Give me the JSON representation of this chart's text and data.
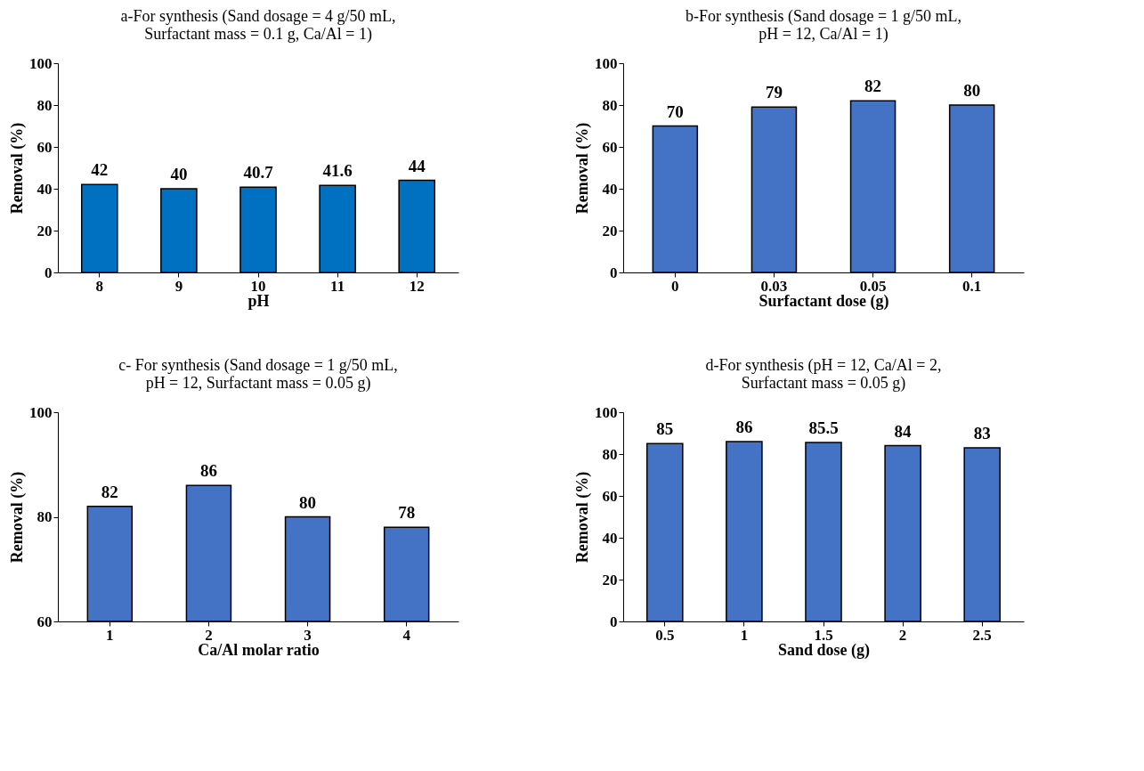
{
  "chart_data": [
    {
      "type": "bar",
      "title": "a-For synthesis (Sand dosage = 4 g/50 mL,\nSurfactant mass = 0.1 g, Ca/Al = 1)",
      "xlabel": "pH",
      "ylabel": "Removal (%)",
      "categories": [
        "8",
        "9",
        "10",
        "11",
        "12"
      ],
      "values": [
        42,
        40,
        40.7,
        41.6,
        44
      ],
      "color": "#0070c0",
      "ylim": [
        0,
        100
      ],
      "yticks": [
        0,
        20,
        40,
        60,
        80,
        100
      ],
      "data_labels": true,
      "grid": false
    },
    {
      "type": "bar",
      "title": "b-For synthesis (Sand dosage = 1 g/50 mL,\npH = 12, Ca/Al = 1)",
      "xlabel": "Surfactant dose (g)",
      "ylabel": "Removal (%)",
      "categories": [
        "0",
        "0.03",
        "0.05",
        "0.1"
      ],
      "values": [
        70,
        79,
        82,
        80
      ],
      "color": "#4472c4",
      "ylim": [
        0,
        100
      ],
      "yticks": [
        0,
        20,
        40,
        60,
        80,
        100
      ],
      "data_labels": true,
      "grid": false
    },
    {
      "type": "bar",
      "title": "c- For synthesis (Sand dosage = 1 g/50 mL,\npH = 12, Surfactant mass = 0.05 g)",
      "xlabel": "Ca/Al molar ratio",
      "ylabel": "Removal (%)",
      "categories": [
        "1",
        "2",
        "3",
        "4"
      ],
      "values": [
        82,
        86,
        80,
        78
      ],
      "color": "#4472c4",
      "ylim": [
        60,
        100
      ],
      "yticks": [
        60,
        80,
        100
      ],
      "data_labels": true,
      "grid": false
    },
    {
      "type": "bar",
      "title": "d-For synthesis (pH = 12, Ca/Al = 2,\nSurfactant mass = 0.05 g)",
      "xlabel": "Sand dose (g)",
      "ylabel": "Removal (%)",
      "categories": [
        "0.5",
        "1",
        "1.5",
        "2",
        "2.5"
      ],
      "values": [
        85,
        86,
        85.5,
        84,
        83
      ],
      "color": "#4472c4",
      "ylim": [
        0,
        100
      ],
      "yticks": [
        0,
        20,
        40,
        60,
        80,
        100
      ],
      "data_labels": true,
      "grid": false
    }
  ]
}
